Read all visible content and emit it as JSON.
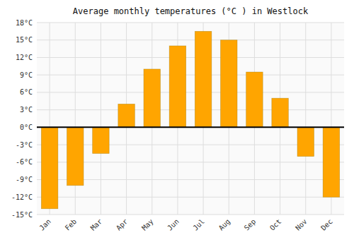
{
  "chart_data": {
    "type": "bar",
    "title": "Average monthly temperatures (°C ) in Westlock",
    "categories": [
      "Jan",
      "Feb",
      "Mar",
      "Apr",
      "May",
      "Jun",
      "Jul",
      "Aug",
      "Sep",
      "Oct",
      "Nov",
      "Dec"
    ],
    "values": [
      -14,
      -10,
      -4.5,
      4,
      10,
      14,
      16.5,
      15,
      9.5,
      5,
      -5,
      -12
    ],
    "color": "#FFA500",
    "ylim": [
      -15,
      18
    ],
    "yticks": [
      {
        "value": -15,
        "label": "-15°C"
      },
      {
        "value": -12,
        "label": "-12°C"
      },
      {
        "value": -9,
        "label": "-9°C"
      },
      {
        "value": -6,
        "label": "-6°C"
      },
      {
        "value": -3,
        "label": "-3°C"
      },
      {
        "value": 0,
        "label": "0°C"
      },
      {
        "value": 3,
        "label": "3°C"
      },
      {
        "value": 6,
        "label": "6°C"
      },
      {
        "value": 9,
        "label": "9°C"
      },
      {
        "value": 12,
        "label": "12°C"
      },
      {
        "value": 15,
        "label": "15°C"
      },
      {
        "value": 18,
        "label": "18°C"
      }
    ],
    "grid": true
  }
}
